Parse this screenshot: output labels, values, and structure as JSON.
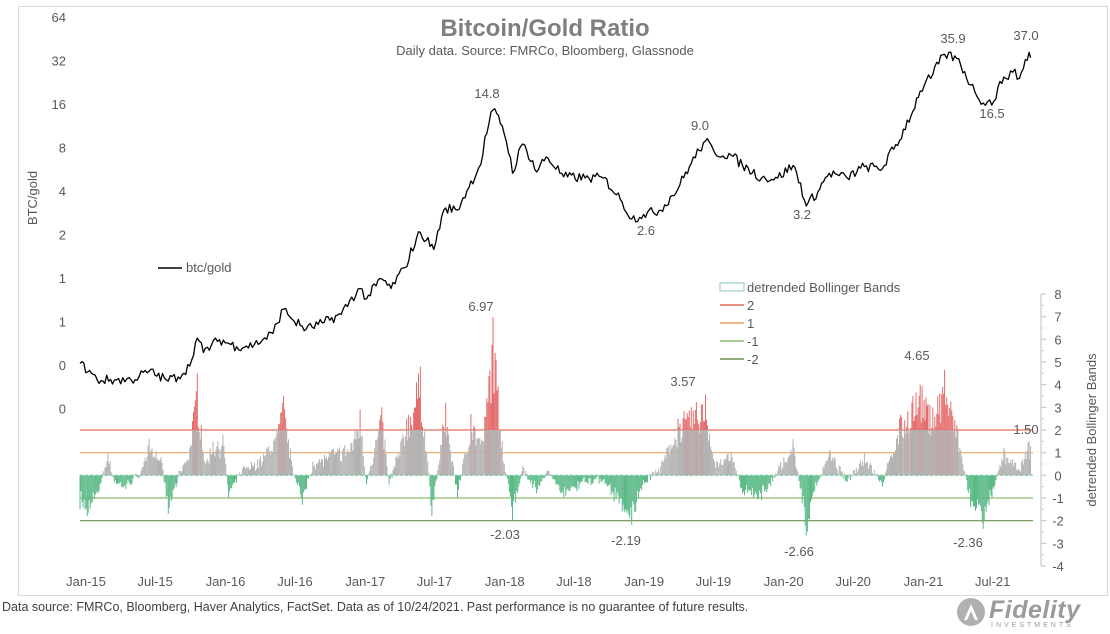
{
  "chart_data": [
    {
      "type": "line",
      "title": "Bitcoin/Gold Ratio",
      "subtitle": "Daily data.  Source: FMRCo, Bloomberg, Glassnode",
      "ylabel": "BTC/gold",
      "y_scale": "log2",
      "y_tick_labels": [
        "64",
        "32",
        "16",
        "8",
        "4",
        "2",
        "1",
        "1",
        "0",
        "0"
      ],
      "x_tick_labels": [
        "Jan-15",
        "Jul-15",
        "Jan-16",
        "Jul-16",
        "Jan-17",
        "Jul-17",
        "Jan-18",
        "Jul-18",
        "Jan-19",
        "Jul-19",
        "Jan-20",
        "Jul-20",
        "Jan-21",
        "Jul-21"
      ],
      "legend": {
        "label": "btc/gold",
        "placement": "middle-left"
      },
      "annotations": [
        "14.8",
        "2.6",
        "9.0",
        "3.2",
        "35.9",
        "16.5",
        "37.0"
      ],
      "series": [
        {
          "name": "btc/gold",
          "color": "#000000",
          "points": [
            [
              "2015-01-01",
              0.26
            ],
            [
              "2015-02-15",
              0.2
            ],
            [
              "2015-04-01",
              0.2
            ],
            [
              "2015-05-15",
              0.2
            ],
            [
              "2015-07-01",
              0.23
            ],
            [
              "2015-08-15",
              0.2
            ],
            [
              "2015-09-15",
              0.21
            ],
            [
              "2015-10-15",
              0.25
            ],
            [
              "2015-11-04",
              0.39
            ],
            [
              "2015-11-20",
              0.31
            ],
            [
              "2016-01-01",
              0.38
            ],
            [
              "2016-02-15",
              0.34
            ],
            [
              "2016-04-01",
              0.35
            ],
            [
              "2016-05-20",
              0.42
            ],
            [
              "2016-06-17",
              0.62
            ],
            [
              "2016-07-15",
              0.51
            ],
            [
              "2016-08-15",
              0.45
            ],
            [
              "2016-10-01",
              0.5
            ],
            [
              "2016-11-15",
              0.57
            ],
            [
              "2017-01-03",
              0.86
            ],
            [
              "2017-01-20",
              0.73
            ],
            [
              "2017-03-01",
              1.0
            ],
            [
              "2017-03-25",
              0.86
            ],
            [
              "2017-05-01",
              1.2
            ],
            [
              "2017-06-10",
              2.1
            ],
            [
              "2017-07-15",
              1.6
            ],
            [
              "2017-08-15",
              3.1
            ],
            [
              "2017-09-15",
              3.0
            ],
            [
              "2017-10-15",
              4.3
            ],
            [
              "2017-11-15",
              6.2
            ],
            [
              "2017-12-17",
              14.8
            ],
            [
              "2018-01-10",
              11.5
            ],
            [
              "2018-02-06",
              5.4
            ],
            [
              "2018-03-05",
              8.6
            ],
            [
              "2018-04-10",
              5.5
            ],
            [
              "2018-05-05",
              7.0
            ],
            [
              "2018-06-20",
              5.1
            ],
            [
              "2018-08-15",
              5.0
            ],
            [
              "2018-10-01",
              5.0
            ],
            [
              "2018-11-20",
              3.4
            ],
            [
              "2018-12-15",
              2.6
            ],
            [
              "2019-01-15",
              2.8
            ],
            [
              "2019-03-01",
              3.0
            ],
            [
              "2019-04-15",
              4.2
            ],
            [
              "2019-05-20",
              6.3
            ],
            [
              "2019-06-26",
              9.0
            ],
            [
              "2019-07-20",
              7.5
            ],
            [
              "2019-09-01",
              7.2
            ],
            [
              "2019-10-01",
              6.1
            ],
            [
              "2019-11-20",
              5.0
            ],
            [
              "2020-01-01",
              5.0
            ],
            [
              "2020-02-10",
              6.1
            ],
            [
              "2020-03-16",
              3.2
            ],
            [
              "2020-04-15",
              4.0
            ],
            [
              "2020-05-15",
              5.4
            ],
            [
              "2020-07-01",
              5.0
            ],
            [
              "2020-08-15",
              6.0
            ],
            [
              "2020-10-01",
              5.8
            ],
            [
              "2020-11-15",
              9.1
            ],
            [
              "2020-12-20",
              14.5
            ],
            [
              "2021-01-08",
              20.0
            ],
            [
              "2021-02-10",
              26.0
            ],
            [
              "2021-03-13",
              35.9
            ],
            [
              "2021-04-14",
              33.5
            ],
            [
              "2021-05-20",
              22.0
            ],
            [
              "2021-06-22",
              16.5
            ],
            [
              "2021-07-20",
              17.0
            ],
            [
              "2021-08-15",
              25.0
            ],
            [
              "2021-09-07",
              27.0
            ],
            [
              "2021-09-25",
              24.5
            ],
            [
              "2021-10-20",
              37.0
            ],
            [
              "2021-10-24",
              34.0
            ]
          ]
        }
      ]
    },
    {
      "type": "area",
      "ylabel": "detrended Bollinger Bands",
      "ylim": [
        -4,
        8
      ],
      "y_tick_labels": [
        "8",
        "7",
        "6",
        "5",
        "4",
        "3",
        "2",
        "1",
        "0",
        "-1",
        "-2",
        "-3",
        "-4"
      ],
      "legend": {
        "placement": "right",
        "entries": [
          {
            "label": "detrended Bollinger Bands",
            "color": "#a6a6a6"
          },
          {
            "label": "2",
            "color": "#e46c5a"
          },
          {
            "label": "1",
            "color": "#f4a460"
          },
          {
            "label": "-1",
            "color": "#8fbc6f"
          },
          {
            "label": "-2",
            "color": "#6a8f4e"
          }
        ]
      },
      "reference_lines": [
        2,
        1,
        -1,
        -2
      ],
      "colors": {
        "positive": "#b3b3b3",
        "strong_positive": "#e46c6c",
        "negative": "#5cba87",
        "zero_line": "#73c9a0"
      },
      "annotations": [
        "6.97",
        "3.57",
        "4.65",
        "1.50",
        "-2.03",
        "-2.19",
        "-2.66",
        "-2.36"
      ],
      "series": [
        {
          "name": "detrended Bollinger Bands",
          "points": [
            [
              "2015-01-01",
              -1.5
            ],
            [
              "2015-01-20",
              -1.8
            ],
            [
              "2015-02-20",
              -0.7
            ],
            [
              "2015-03-15",
              1.0
            ],
            [
              "2015-04-01",
              -0.3
            ],
            [
              "2015-05-01",
              -0.6
            ],
            [
              "2015-06-10",
              0.2
            ],
            [
              "2015-07-01",
              1.6
            ],
            [
              "2015-08-01",
              0.8
            ],
            [
              "2015-08-20",
              -1.7
            ],
            [
              "2015-09-20",
              0.2
            ],
            [
              "2015-10-15",
              1.2
            ],
            [
              "2015-11-04",
              4.5
            ],
            [
              "2015-11-25",
              0.5
            ],
            [
              "2015-12-15",
              1.5
            ],
            [
              "2016-01-10",
              1.8
            ],
            [
              "2016-01-25",
              -1.0
            ],
            [
              "2016-03-01",
              0.3
            ],
            [
              "2016-04-15",
              0.7
            ],
            [
              "2016-05-30",
              2.0
            ],
            [
              "2016-06-17",
              3.5
            ],
            [
              "2016-07-10",
              0.4
            ],
            [
              "2016-08-05",
              -1.3
            ],
            [
              "2016-09-01",
              0.6
            ],
            [
              "2016-10-20",
              1.1
            ],
            [
              "2016-12-10",
              1.4
            ],
            [
              "2017-01-03",
              2.9
            ],
            [
              "2017-01-20",
              -0.4
            ],
            [
              "2017-03-01",
              3.0
            ],
            [
              "2017-03-20",
              -0.4
            ],
            [
              "2017-05-05",
              2.5
            ],
            [
              "2017-06-10",
              4.8
            ],
            [
              "2017-07-10",
              -1.8
            ],
            [
              "2017-08-15",
              3.2
            ],
            [
              "2017-09-15",
              -1.0
            ],
            [
              "2017-10-20",
              2.7
            ],
            [
              "2017-11-20",
              1.5
            ],
            [
              "2017-12-17",
              6.97
            ],
            [
              "2018-01-10",
              1.5
            ],
            [
              "2018-02-06",
              -2.03
            ],
            [
              "2018-03-05",
              0.4
            ],
            [
              "2018-04-10",
              -0.8
            ],
            [
              "2018-05-10",
              0.2
            ],
            [
              "2018-06-20",
              -1.0
            ],
            [
              "2018-08-15",
              -0.3
            ],
            [
              "2018-10-01",
              -0.2
            ],
            [
              "2018-11-20",
              -1.6
            ],
            [
              "2018-12-15",
              -2.19
            ],
            [
              "2019-01-20",
              -0.3
            ],
            [
              "2019-03-01",
              0.4
            ],
            [
              "2019-04-15",
              2.5
            ],
            [
              "2019-05-20",
              3.0
            ],
            [
              "2019-06-26",
              3.57
            ],
            [
              "2019-07-20",
              0.6
            ],
            [
              "2019-09-01",
              1.0
            ],
            [
              "2019-10-01",
              -0.8
            ],
            [
              "2019-11-20",
              -1.1
            ],
            [
              "2020-01-01",
              0.2
            ],
            [
              "2020-02-10",
              1.6
            ],
            [
              "2020-03-16",
              -2.66
            ],
            [
              "2020-04-15",
              -0.3
            ],
            [
              "2020-05-15",
              1.1
            ],
            [
              "2020-07-01",
              -0.3
            ],
            [
              "2020-08-15",
              1.0
            ],
            [
              "2020-10-01",
              -0.5
            ],
            [
              "2020-11-15",
              2.5
            ],
            [
              "2020-12-20",
              3.5
            ],
            [
              "2021-01-08",
              4.0
            ],
            [
              "2021-02-10",
              3.0
            ],
            [
              "2021-03-13",
              4.65
            ],
            [
              "2021-04-14",
              2.2
            ],
            [
              "2021-05-20",
              -1.4
            ],
            [
              "2021-06-22",
              -2.36
            ],
            [
              "2021-07-20",
              -0.6
            ],
            [
              "2021-08-15",
              1.2
            ],
            [
              "2021-09-25",
              0.2
            ],
            [
              "2021-10-20",
              1.5
            ],
            [
              "2021-10-24",
              1.3
            ]
          ]
        }
      ]
    }
  ],
  "footnote": "Data source: FMRCo, Bloomberg, Haver Analytics, FactSet. Data as of 10/24/2021. Past performance is no guarantee of future results.",
  "logo": {
    "wordmark": "Fidelity",
    "sub": "INVESTMENTS"
  }
}
